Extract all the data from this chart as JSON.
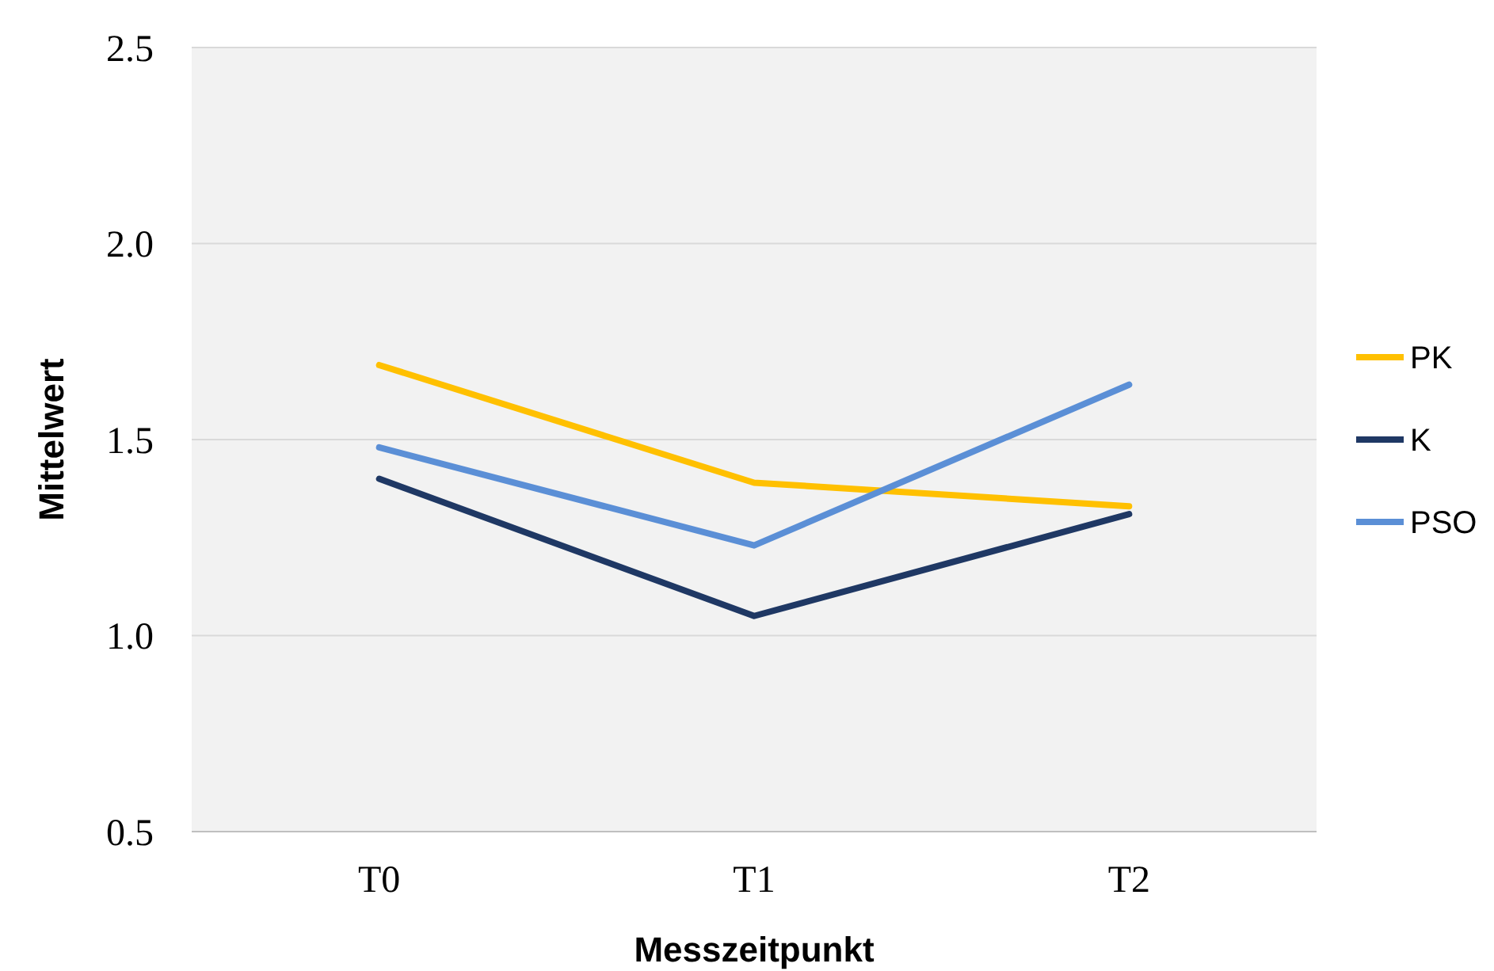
{
  "chart_data": {
    "type": "line",
    "xlabel": "Messzeitpunkt",
    "ylabel": "Mittelwert",
    "categories": [
      "T0",
      "T1",
      "T2"
    ],
    "series": [
      {
        "name": "PK",
        "color": "#ffc000",
        "values": [
          1.69,
          1.39,
          1.33
        ]
      },
      {
        "name": "K",
        "color": "#1f3864",
        "values": [
          1.4,
          1.05,
          1.31
        ]
      },
      {
        "name": "PSO",
        "color": "#5b8fd6",
        "values": [
          1.48,
          1.23,
          1.64
        ]
      }
    ],
    "ylim": [
      0.5,
      2.5
    ],
    "yticks": [
      {
        "value": 0.5,
        "label": "0.5"
      },
      {
        "value": 1,
        "label": "1.0"
      },
      {
        "value": 1.5,
        "label": "1.5"
      },
      {
        "value": 2,
        "label": "2.0"
      },
      {
        "value": 2.5,
        "label": "2.5"
      }
    ],
    "grid": "y",
    "legend": "right",
    "marker": "none",
    "line_style": "solid"
  }
}
